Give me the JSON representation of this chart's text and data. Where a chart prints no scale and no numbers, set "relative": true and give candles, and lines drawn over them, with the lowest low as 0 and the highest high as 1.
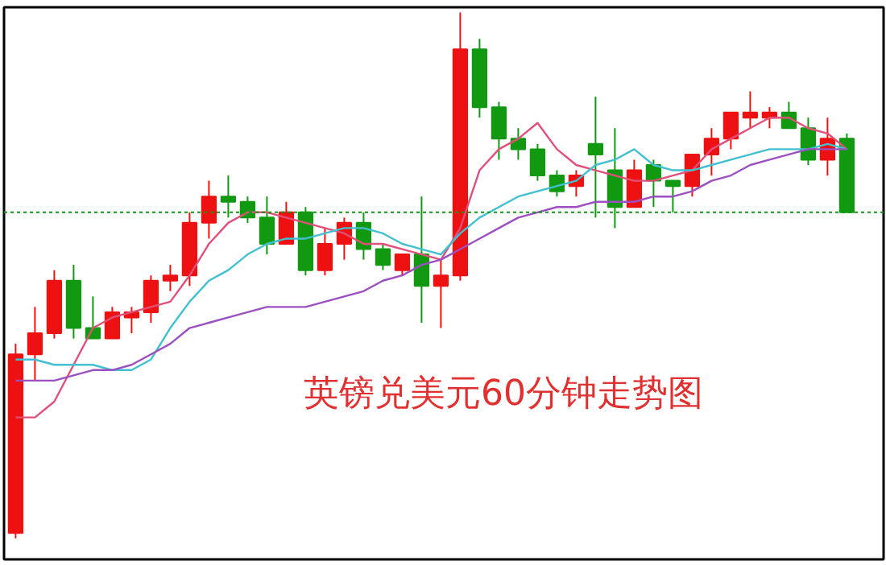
{
  "chart_data": {
    "type": "candlestick",
    "title": "英镑兑美元60分钟走势图",
    "relative": true,
    "categories": [
      null,
      null,
      null,
      null,
      null,
      null,
      null,
      null,
      null,
      null,
      null,
      null,
      null,
      null,
      null,
      null,
      null,
      null,
      null,
      null,
      null,
      null,
      null,
      null,
      null,
      null,
      null,
      null,
      null,
      null,
      null,
      null,
      null,
      null,
      null,
      null,
      null,
      null,
      null,
      null,
      null,
      null,
      null,
      null
    ],
    "ohlc": [
      [
        0.01,
        0.37,
        0,
        0.35
      ],
      [
        0.35,
        0.44,
        0.3,
        0.39
      ],
      [
        0.39,
        0.51,
        0.38,
        0.49
      ],
      [
        0.49,
        0.52,
        0.38,
        0.4
      ],
      [
        0.4,
        0.46,
        0.38,
        0.38
      ],
      [
        0.38,
        0.44,
        0.38,
        0.43
      ],
      [
        0.42,
        0.44,
        0.39,
        0.43
      ],
      [
        0.43,
        0.5,
        0.41,
        0.49
      ],
      [
        0.49,
        0.52,
        0.47,
        0.5
      ],
      [
        0.5,
        0.62,
        0.48,
        0.6
      ],
      [
        0.6,
        0.68,
        0.57,
        0.65
      ],
      [
        0.65,
        0.69,
        0.61,
        0.64
      ],
      [
        0.64,
        0.65,
        0.6,
        0.61
      ],
      [
        0.61,
        0.65,
        0.54,
        0.56
      ],
      [
        0.56,
        0.64,
        0.56,
        0.62
      ],
      [
        0.62,
        0.63,
        0.5,
        0.51
      ],
      [
        0.51,
        0.59,
        0.5,
        0.56
      ],
      [
        0.56,
        0.61,
        0.53,
        0.6
      ],
      [
        0.6,
        0.62,
        0.53,
        0.55
      ],
      [
        0.55,
        0.56,
        0.51,
        0.52
      ],
      [
        0.51,
        0.54,
        0.5,
        0.54
      ],
      [
        0.54,
        0.65,
        0.41,
        0.48
      ],
      [
        0.48,
        0.53,
        0.4,
        0.5
      ],
      [
        0.5,
        1,
        0.49,
        0.93
      ],
      [
        0.93,
        0.95,
        0.8,
        0.82
      ],
      [
        0.82,
        0.83,
        0.72,
        0.76
      ],
      [
        0.76,
        0.78,
        0.72,
        0.74
      ],
      [
        0.74,
        0.75,
        0.68,
        0.69
      ],
      [
        0.69,
        0.7,
        0.65,
        0.66
      ],
      [
        0.67,
        0.7,
        0.65,
        0.69
      ],
      [
        0.75,
        0.84,
        0.61,
        0.73
      ],
      [
        0.7,
        0.78,
        0.59,
        0.63
      ],
      [
        0.63,
        0.72,
        0.63,
        0.7
      ],
      [
        0.71,
        0.72,
        0.63,
        0.68
      ],
      [
        0.68,
        0.68,
        0.62,
        0.67
      ],
      [
        0.67,
        0.73,
        0.65,
        0.73
      ],
      [
        0.73,
        0.78,
        0.69,
        0.76
      ],
      [
        0.76,
        0.81,
        0.74,
        0.81
      ],
      [
        0.8,
        0.85,
        0.78,
        0.81
      ],
      [
        0.8,
        0.82,
        0.78,
        0.81
      ],
      [
        0.81,
        0.83,
        0.78,
        0.78
      ],
      [
        0.78,
        0.8,
        0.71,
        0.72
      ],
      [
        0.72,
        0.8,
        0.69,
        0.76
      ],
      [
        0.76,
        0.77,
        0.62,
        0.62
      ]
    ],
    "series": [
      {
        "type": "line",
        "color": "#e0507a",
        "values": [
          0.23,
          0.23,
          0.26,
          0.33,
          0.4,
          0.42,
          0.43,
          0.44,
          0.45,
          0.5,
          0.56,
          0.6,
          0.62,
          0.62,
          0.61,
          0.6,
          0.59,
          0.58,
          0.56,
          0.56,
          0.55,
          0.54,
          0.53,
          0.59,
          0.7,
          0.74,
          0.76,
          0.79,
          0.74,
          0.71,
          0.7,
          0.69,
          0.68,
          0.68,
          0.69,
          0.7,
          0.74,
          0.76,
          0.78,
          0.8,
          0.8,
          0.78,
          0.77,
          0.74
        ]
      },
      {
        "type": "line",
        "color": "#40c0d0",
        "values": [
          0.34,
          0.34,
          0.33,
          0.33,
          0.33,
          0.32,
          0.32,
          0.34,
          0.4,
          0.45,
          0.49,
          0.51,
          0.54,
          0.56,
          0.57,
          0.57,
          0.58,
          0.59,
          0.59,
          0.58,
          0.56,
          0.55,
          0.54,
          0.58,
          0.61,
          0.63,
          0.65,
          0.66,
          0.67,
          0.68,
          0.71,
          0.72,
          0.74,
          0.71,
          0.7,
          0.7,
          0.71,
          0.72,
          0.73,
          0.74,
          0.74,
          0.74,
          0.75,
          0.74
        ]
      },
      {
        "type": "line",
        "color": "#9b4fc0",
        "values": [
          0.3,
          0.3,
          0.3,
          0.31,
          0.32,
          0.32,
          0.33,
          0.35,
          0.37,
          0.4,
          0.41,
          0.42,
          0.43,
          0.44,
          0.44,
          0.44,
          0.45,
          0.46,
          0.47,
          0.49,
          0.5,
          0.52,
          0.53,
          0.55,
          0.57,
          0.59,
          0.61,
          0.62,
          0.63,
          0.63,
          0.64,
          0.64,
          0.64,
          0.65,
          0.65,
          0.66,
          0.68,
          0.69,
          0.71,
          0.72,
          0.73,
          0.74,
          0.74,
          0.74
        ]
      }
    ],
    "ref_lines": [
      {
        "axis": "y",
        "value": 0.62,
        "color": "#119911",
        "line_style": "dotted"
      }
    ]
  }
}
